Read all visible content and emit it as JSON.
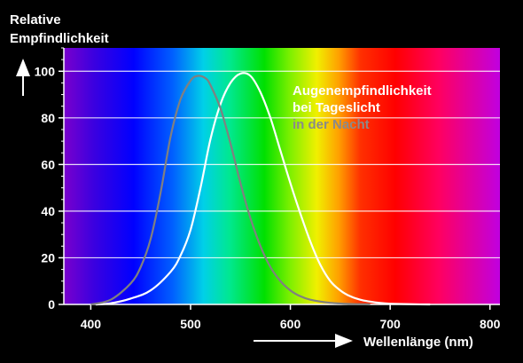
{
  "chart_data": {
    "type": "line",
    "ylabel_line1": "Relative",
    "ylabel_line2": "Empfindlichkeit",
    "xlabel": "Wellenlänge (nm)",
    "xlim": [
      373,
      810
    ],
    "ylim": [
      0,
      110
    ],
    "x_ticks": [
      400,
      500,
      600,
      700,
      800
    ],
    "y_ticks": [
      0,
      20,
      40,
      60,
      80,
      100
    ],
    "grid": true,
    "background": "visible spectrum gradient",
    "legend_day_line1": "Augenempfindlichkeit",
    "legend_day_line2": "bei Tageslicht",
    "legend_night": "in der Nacht",
    "colors": {
      "day": "#ffffff",
      "night": "#808080",
      "text": "#ffffff",
      "grid": "#ffffff"
    },
    "series": [
      {
        "id": "day",
        "x": [
          405,
          420,
          440,
          460,
          480,
          490,
          500,
          510,
          520,
          530,
          540,
          550,
          560,
          570,
          580,
          590,
          600,
          610,
          620,
          630,
          640,
          650,
          660,
          670,
          680,
          690,
          700,
          720,
          740
        ],
        "values": [
          0,
          0.5,
          2.5,
          6,
          14,
          21,
          32,
          50,
          71,
          86,
          95,
          99,
          98,
          91,
          80,
          66,
          52,
          39,
          27,
          17,
          10,
          6,
          3.5,
          2,
          1.2,
          0.6,
          0.3,
          0.1,
          0
        ]
      },
      {
        "id": "night",
        "x": [
          400,
          420,
          440,
          450,
          460,
          470,
          480,
          490,
          500,
          507,
          515,
          520,
          530,
          540,
          550,
          560,
          570,
          580,
          590,
          600,
          610,
          620,
          640,
          660,
          680
        ],
        "values": [
          0,
          2,
          9,
          16,
          28,
          48,
          72,
          88,
          96,
          98,
          97,
          94,
          84,
          69,
          52,
          37,
          25,
          16,
          10,
          6,
          3.5,
          2,
          0.7,
          0.2,
          0
        ]
      }
    ]
  }
}
